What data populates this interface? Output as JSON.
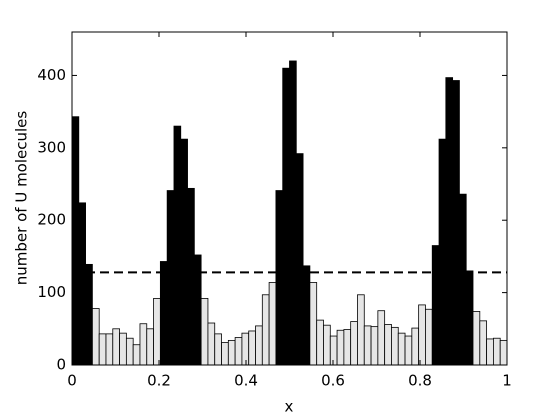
{
  "chart_data": {
    "type": "histogram",
    "xlabel": "x",
    "ylabel": "number of U molecules",
    "bins": [
      0,
      0.015625,
      0.03125,
      0.046875,
      0.0625,
      0.078125,
      0.09375,
      0.109375,
      0.125,
      0.140625,
      0.15625,
      0.171875,
      0.1875,
      0.203125,
      0.21875,
      0.234375,
      0.25,
      0.265625,
      0.28125,
      0.296875,
      0.3125,
      0.328125,
      0.34375,
      0.359375,
      0.375,
      0.390625,
      0.40625,
      0.421875,
      0.4375,
      0.453125,
      0.46875,
      0.484375,
      0.5,
      0.515625,
      0.53125,
      0.546875,
      0.5625,
      0.578125,
      0.59375,
      0.609375,
      0.625,
      0.640625,
      0.65625,
      0.671875,
      0.6875,
      0.703125,
      0.71875,
      0.734375,
      0.75,
      0.765625,
      0.78125,
      0.796875,
      0.8125,
      0.828125,
      0.84375,
      0.859375,
      0.875,
      0.890625,
      0.90625,
      0.921875,
      0.9375,
      0.953125,
      0.96875,
      0.984375,
      1
    ],
    "counts": [
      343,
      224,
      139,
      78,
      43,
      43,
      50,
      44,
      37,
      28,
      57,
      50,
      92,
      143,
      241,
      330,
      312,
      244,
      152,
      92,
      58,
      43,
      31,
      34,
      38,
      44,
      47,
      54,
      97,
      114,
      241,
      410,
      420,
      292,
      137,
      114,
      62,
      55,
      40,
      48,
      49,
      60,
      97,
      54,
      53,
      75,
      56,
      52,
      44,
      40,
      51,
      83,
      77,
      165,
      312,
      397,
      393,
      236,
      130,
      74,
      61,
      36,
      37,
      34
    ],
    "reference_line": 128,
    "color_above": "#000000",
    "color_below": "#e6e6e6",
    "xlim": [
      0,
      1
    ],
    "xticks": [
      0,
      0.2,
      0.4,
      0.6,
      0.8,
      1
    ],
    "ylim": [
      0,
      460
    ],
    "yticks": [
      0,
      100,
      200,
      300,
      400
    ]
  }
}
